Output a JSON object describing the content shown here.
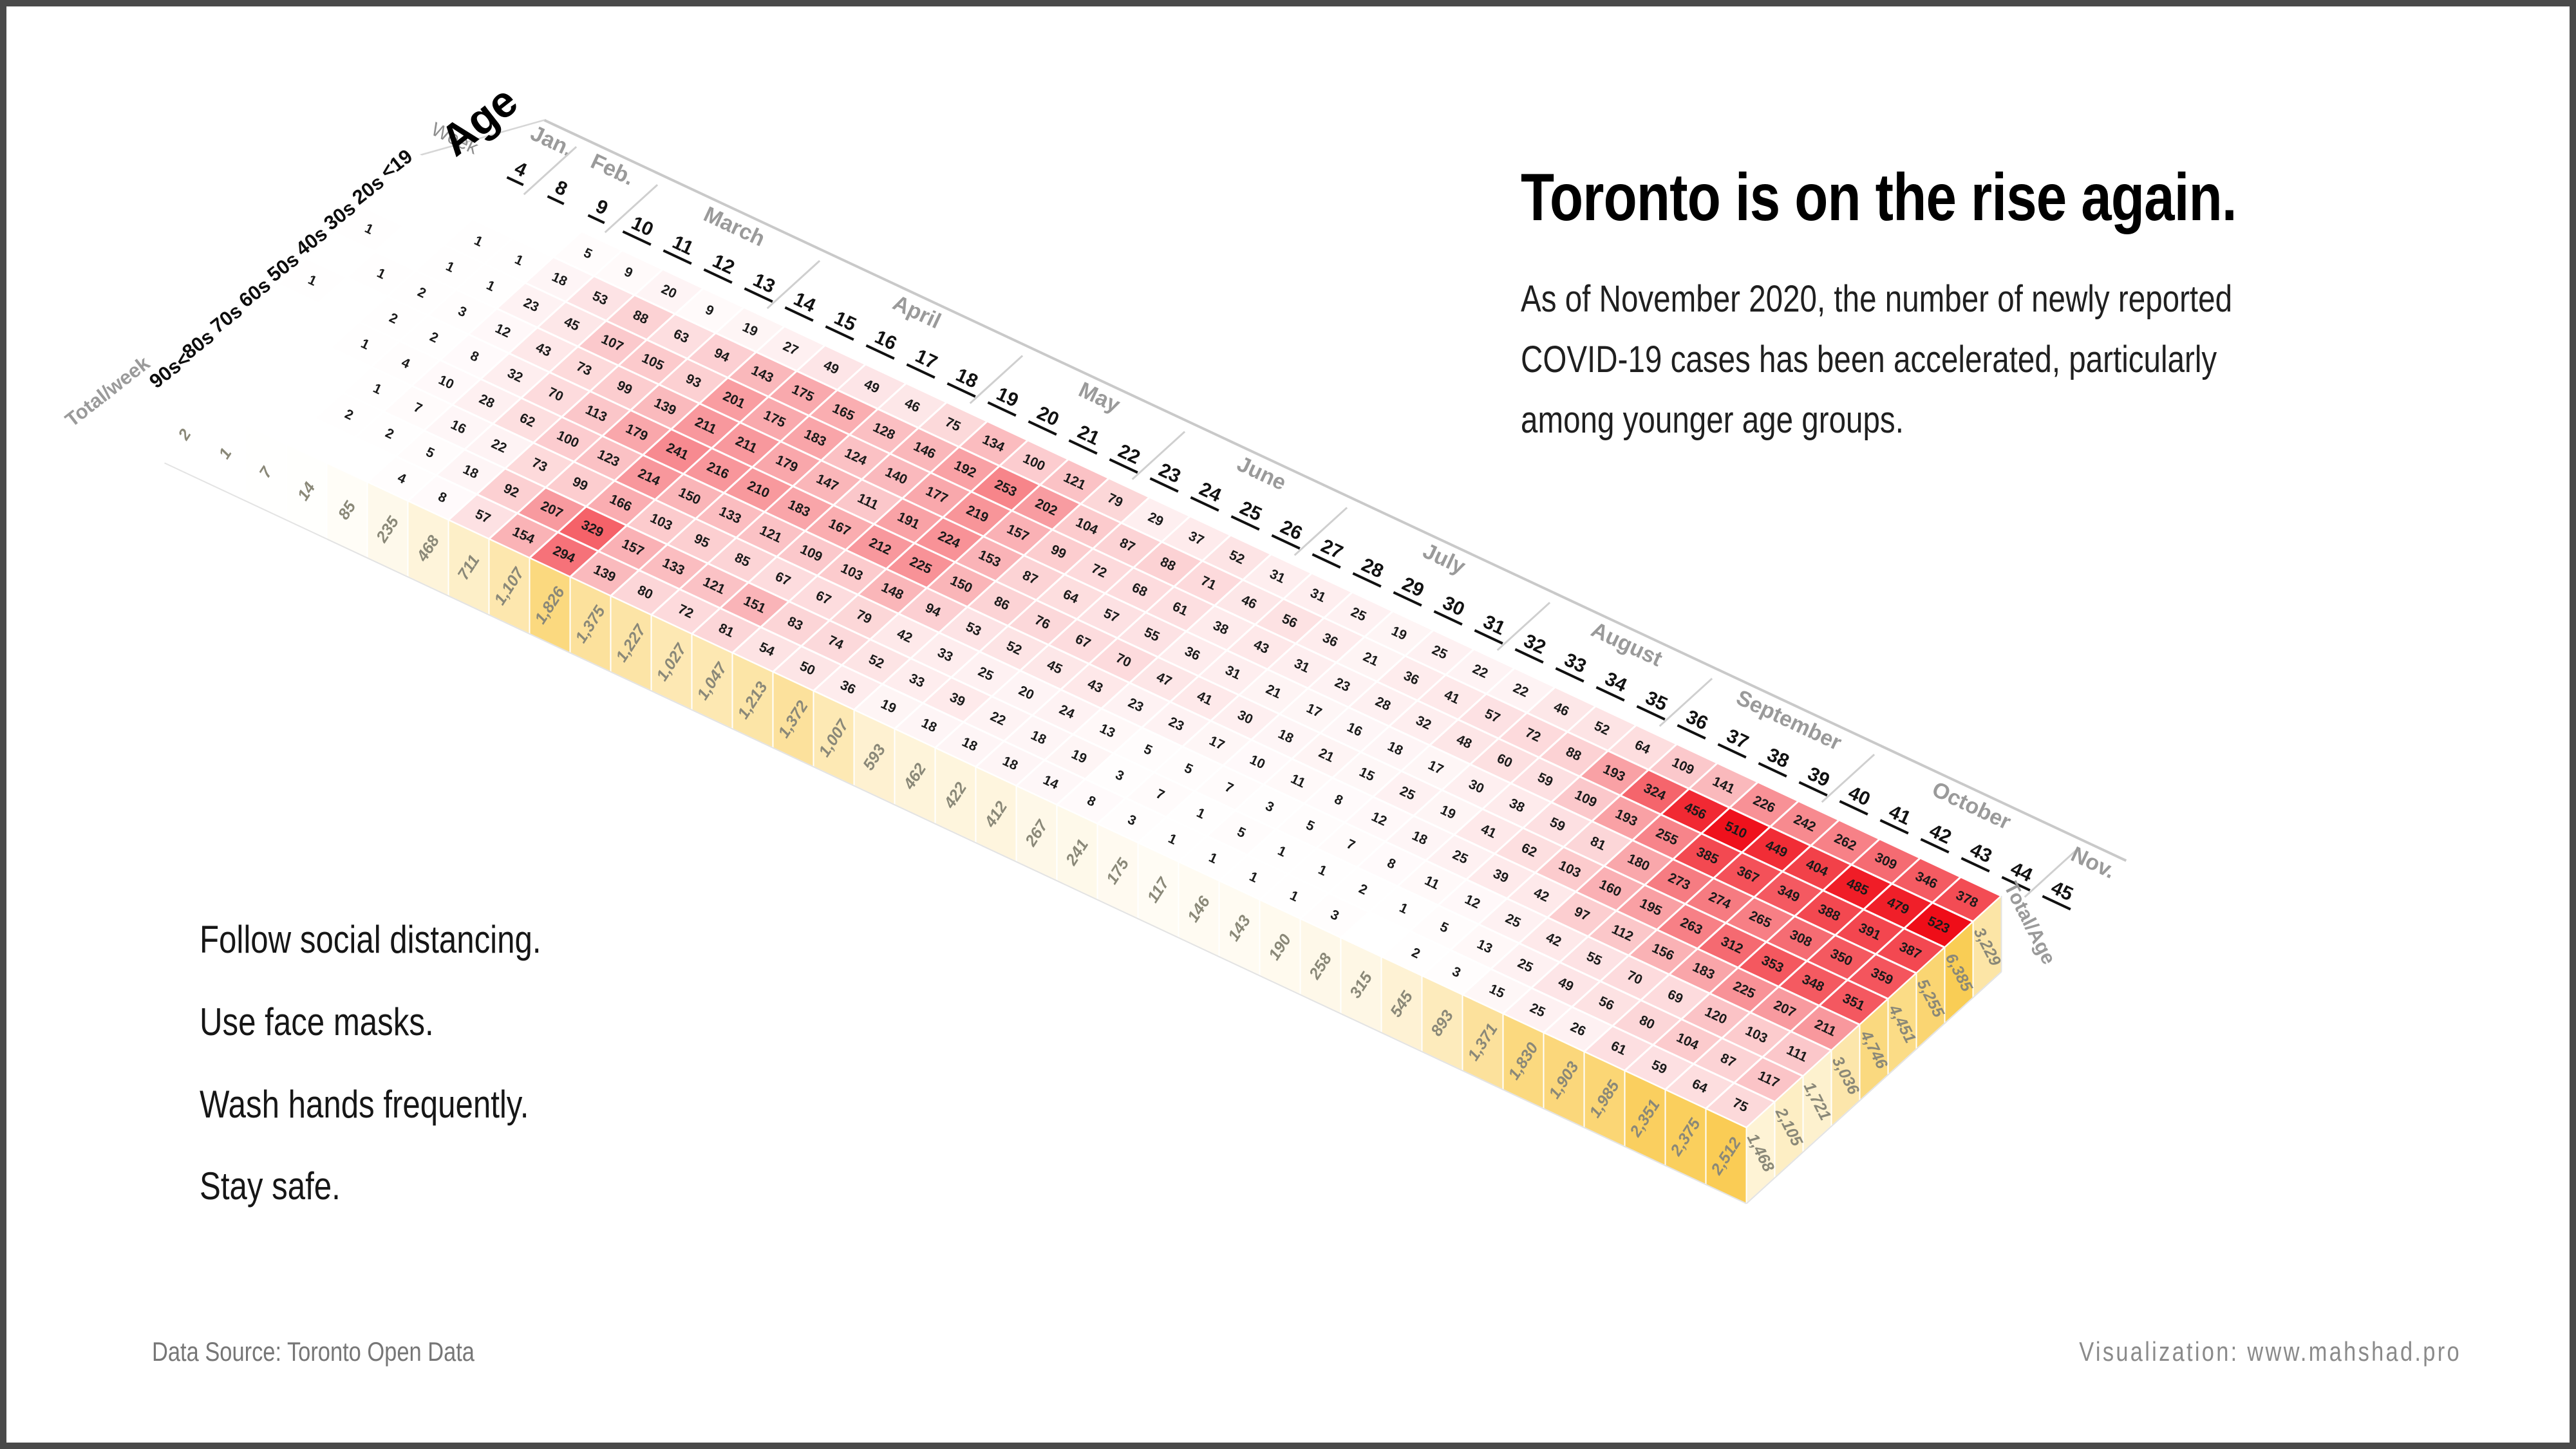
{
  "page": {
    "title": "Toronto is on the rise again.",
    "subtitle_lines": [
      "As of November 2020, the number of newly reported",
      "COVID-19 cases has been accelerated, particularly",
      "among younger age groups."
    ],
    "advice_lines": [
      "Follow social distancing.",
      "Use face masks.",
      "Wash hands frequently.",
      "Stay safe."
    ],
    "footer_left": "Data Source: Toronto Open Data",
    "footer_right": "Visualization: www.mahshad.pro"
  },
  "chart_data": {
    "type": "heatmap",
    "title": "Toronto is on the rise again.",
    "x_label": "Week",
    "y_label": "Age",
    "totals_labels": {
      "week": "Total/week",
      "age": "Total/Age"
    },
    "months": [
      {
        "label": "Jan.",
        "weeks": [
          4
        ]
      },
      {
        "label": "Feb.",
        "weeks": [
          8,
          9
        ]
      },
      {
        "label": "March",
        "weeks": [
          10,
          11,
          12,
          13
        ]
      },
      {
        "label": "April",
        "weeks": [
          14,
          15,
          16,
          17,
          18
        ]
      },
      {
        "label": "May",
        "weeks": [
          19,
          20,
          21,
          22
        ]
      },
      {
        "label": "June",
        "weeks": [
          23,
          24,
          25,
          26
        ]
      },
      {
        "label": "July",
        "weeks": [
          27,
          28,
          29,
          30,
          31
        ]
      },
      {
        "label": "August",
        "weeks": [
          32,
          33,
          34,
          35
        ]
      },
      {
        "label": "September",
        "weeks": [
          36,
          37,
          38,
          39
        ]
      },
      {
        "label": "October",
        "weeks": [
          40,
          41,
          42,
          43,
          44
        ]
      },
      {
        "label": "Nov.",
        "weeks": [
          45
        ]
      }
    ],
    "weeks": [
      4,
      8,
      9,
      10,
      11,
      12,
      13,
      14,
      15,
      16,
      17,
      18,
      19,
      20,
      21,
      22,
      23,
      24,
      25,
      26,
      27,
      28,
      29,
      30,
      31,
      32,
      33,
      34,
      35,
      36,
      37,
      38,
      39,
      40,
      41,
      42,
      43,
      44,
      45
    ],
    "age_groups": [
      "<19",
      "20s",
      "30s",
      "40s",
      "50s",
      "60s",
      "70s",
      "80s",
      "90s<"
    ],
    "columns": [
      [
        0,
        0,
        1,
        0,
        1,
        0,
        0,
        0,
        0
      ],
      [
        0,
        0,
        0,
        1,
        0,
        0,
        0,
        0,
        0
      ],
      [
        0,
        1,
        1,
        2,
        2,
        1,
        0,
        0,
        0
      ],
      [
        0,
        1,
        1,
        3,
        2,
        4,
        1,
        2,
        0
      ],
      [
        5,
        18,
        23,
        12,
        8,
        10,
        7,
        2,
        0
      ],
      [
        9,
        53,
        45,
        43,
        32,
        28,
        16,
        5,
        4
      ],
      [
        20,
        88,
        107,
        73,
        70,
        62,
        22,
        18,
        8
      ],
      [
        9,
        63,
        105,
        99,
        113,
        100,
        73,
        92,
        57
      ],
      [
        19,
        94,
        93,
        139,
        179,
        123,
        99,
        207,
        154
      ],
      [
        27,
        143,
        201,
        211,
        241,
        214,
        166,
        329,
        294
      ],
      [
        49,
        175,
        175,
        211,
        216,
        150,
        103,
        157,
        139
      ],
      [
        49,
        165,
        183,
        179,
        210,
        133,
        95,
        133,
        80
      ],
      [
        46,
        128,
        124,
        147,
        183,
        121,
        85,
        121,
        72
      ],
      [
        75,
        146,
        140,
        111,
        167,
        109,
        67,
        151,
        81
      ],
      [
        134,
        192,
        177,
        191,
        212,
        103,
        67,
        83,
        54
      ],
      [
        100,
        253,
        219,
        224,
        225,
        148,
        79,
        74,
        50
      ],
      [
        121,
        202,
        157,
        153,
        150,
        94,
        42,
        52,
        36
      ],
      [
        79,
        104,
        99,
        87,
        86,
        53,
        33,
        33,
        19
      ],
      [
        29,
        87,
        72,
        64,
        76,
        52,
        25,
        39,
        18
      ],
      [
        37,
        88,
        68,
        57,
        67,
        45,
        20,
        22,
        18
      ],
      [
        52,
        71,
        61,
        55,
        70,
        43,
        24,
        18,
        18
      ],
      [
        31,
        46,
        38,
        36,
        47,
        23,
        13,
        19,
        14
      ],
      [
        31,
        56,
        43,
        31,
        41,
        23,
        5,
        3,
        8
      ],
      [
        25,
        36,
        31,
        21,
        30,
        17,
        5,
        7,
        3
      ],
      [
        19,
        21,
        23,
        17,
        18,
        10,
        7,
        1,
        1
      ],
      [
        25,
        36,
        28,
        16,
        21,
        11,
        3,
        5,
        1
      ],
      [
        22,
        41,
        32,
        18,
        15,
        8,
        5,
        1,
        1
      ],
      [
        22,
        57,
        48,
        17,
        25,
        12,
        7,
        1,
        1
      ],
      [
        46,
        72,
        60,
        30,
        19,
        18,
        8,
        2,
        3
      ],
      [
        52,
        88,
        59,
        38,
        41,
        25,
        11,
        1,
        0
      ],
      [
        64,
        193,
        109,
        59,
        62,
        39,
        12,
        5,
        2
      ],
      [
        109,
        324,
        193,
        81,
        103,
        42,
        25,
        13,
        3
      ],
      [
        141,
        456,
        255,
        180,
        160,
        97,
        42,
        25,
        15
      ],
      [
        226,
        510,
        385,
        273,
        195,
        112,
        55,
        49,
        25
      ],
      [
        242,
        449,
        367,
        274,
        263,
        156,
        70,
        56,
        26
      ],
      [
        262,
        404,
        349,
        265,
        312,
        183,
        69,
        80,
        61
      ],
      [
        309,
        485,
        388,
        308,
        353,
        225,
        120,
        104,
        59
      ],
      [
        346,
        479,
        391,
        350,
        348,
        207,
        103,
        87,
        64
      ],
      [
        378,
        523,
        387,
        359,
        351,
        211,
        111,
        117,
        75
      ]
    ],
    "week_totals": [
      2,
      1,
      7,
      14,
      85,
      235,
      468,
      711,
      1107,
      1826,
      1375,
      1227,
      1027,
      1047,
      1213,
      1372,
      1007,
      593,
      462,
      422,
      412,
      267,
      241,
      175,
      117,
      146,
      143,
      190,
      258,
      315,
      545,
      893,
      1371,
      1830,
      1903,
      1985,
      2351,
      2375,
      2512
    ],
    "age_totals": [
      3229,
      6385,
      5255,
      4451,
      4746,
      3036,
      1721,
      2105,
      1468
    ],
    "colors": {
      "cell_zero": "#ffffff",
      "cell_max": "#ef0d18",
      "week_total_max": "#facc55",
      "age_total_max": "#f9cd55",
      "grid": "#ffffff",
      "month_text": "#9a9a9a",
      "week_text": "#111111",
      "cell_text": "#1a1a1a",
      "total_text": "#8a8878",
      "band_line": "#c9c9c9"
    },
    "legend_position": "none"
  }
}
